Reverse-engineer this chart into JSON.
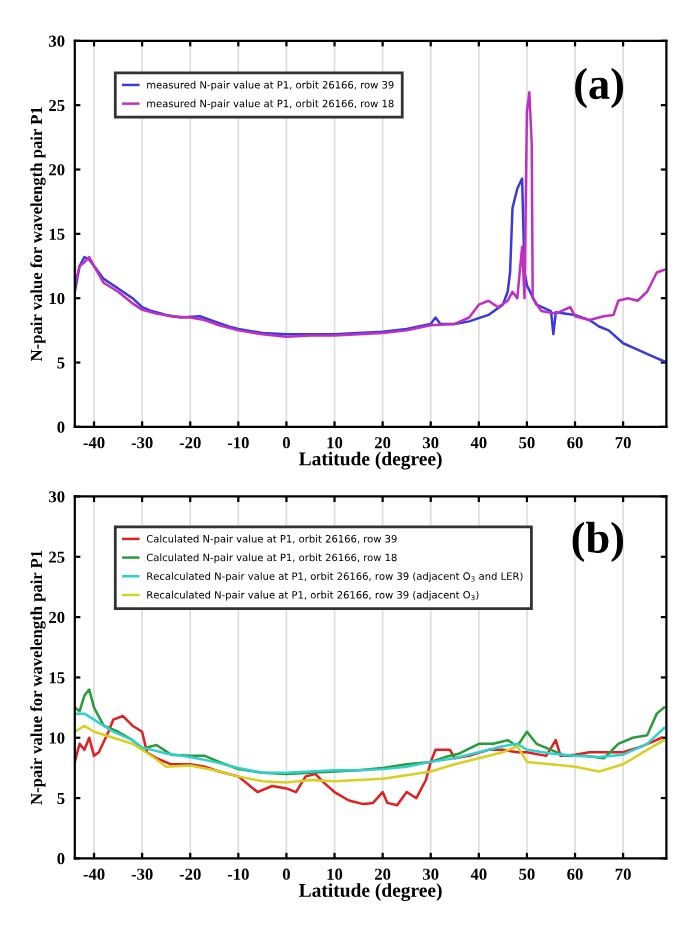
{
  "chart_data": [
    {
      "type": "line",
      "xlabel": "Latitude (degree)",
      "ylabel": "N-pair value for wavelength pair P1",
      "annotations": [
        "(a)"
      ],
      "xlim": [
        -44,
        79
      ],
      "ylim": [
        0,
        30
      ],
      "xticks": [
        -40,
        -30,
        -20,
        -10,
        0,
        10,
        20,
        30,
        40,
        50,
        60,
        70
      ],
      "yticks": [
        0,
        5,
        10,
        15,
        20,
        25,
        30
      ],
      "grid": "x",
      "legend": "top left",
      "marker": "none",
      "line_style": "solid",
      "series": [
        {
          "name": "measured N-pair value at P1, orbit 26166, row 39",
          "color": "#3a3adc",
          "x": [
            -44,
            -43,
            -42,
            -41,
            -40,
            -38,
            -36,
            -34,
            -32,
            -30,
            -28,
            -25,
            -22,
            -18,
            -15,
            -12,
            -10,
            -5,
            0,
            5,
            10,
            15,
            20,
            25,
            30,
            31,
            32,
            35,
            38,
            42,
            45,
            46,
            46.5,
            47,
            48,
            49,
            49.5,
            50,
            52,
            55,
            55.5,
            56,
            60,
            63,
            65,
            67,
            70,
            73,
            76,
            78.5
          ],
          "values": [
            10.5,
            12.5,
            13.2,
            13,
            12.5,
            11.5,
            11,
            10.5,
            10,
            9.3,
            9,
            8.7,
            8.5,
            8.6,
            8.2,
            7.8,
            7.6,
            7.3,
            7.2,
            7.2,
            7.2,
            7.3,
            7.4,
            7.6,
            8,
            8.5,
            8,
            8,
            8.2,
            8.7,
            9.5,
            10.5,
            12,
            17,
            18.5,
            19.3,
            12,
            11,
            9.5,
            9,
            7.2,
            8.9,
            8.7,
            8.3,
            7.8,
            7.5,
            6.5,
            6,
            5.5,
            5.1
          ]
        },
        {
          "name": "measured N-pair value at P1, orbit 26166, row 18",
          "color": "#c030c0",
          "x": [
            -44,
            -43,
            -42,
            -41,
            -40,
            -38,
            -35,
            -32,
            -30,
            -27,
            -24,
            -20,
            -17,
            -14,
            -10,
            -5,
            0,
            5,
            10,
            15,
            20,
            25,
            30,
            35,
            38,
            40,
            42,
            44,
            46,
            47,
            48,
            49,
            49.5,
            50,
            50.5,
            51,
            51.2,
            53,
            56,
            59,
            60,
            63,
            66,
            68,
            69,
            71,
            73,
            75,
            77,
            78.5
          ],
          "values": [
            11,
            12.5,
            12.8,
            13.2,
            12.5,
            11.2,
            10.5,
            9.6,
            9.1,
            8.8,
            8.6,
            8.5,
            8.3,
            7.9,
            7.5,
            7.2,
            7.0,
            7.1,
            7.1,
            7.2,
            7.3,
            7.5,
            7.9,
            8.0,
            8.5,
            9.5,
            9.8,
            9.3,
            9.8,
            10.5,
            10,
            14,
            10,
            24.5,
            26,
            22,
            10,
            9,
            8.8,
            9.3,
            8.6,
            8.3,
            8.6,
            8.7,
            9.8,
            10,
            9.8,
            10.5,
            12,
            12.2
          ]
        }
      ]
    },
    {
      "type": "line",
      "xlabel": "Latitude (degree)",
      "ylabel": "N-pair value for wavelength pair P1",
      "annotations": [
        "(b)"
      ],
      "xlim": [
        -44,
        79
      ],
      "ylim": [
        0,
        30
      ],
      "xticks": [
        -40,
        -30,
        -20,
        -10,
        0,
        10,
        20,
        30,
        40,
        50,
        60,
        70
      ],
      "yticks": [
        0,
        5,
        10,
        15,
        20,
        25,
        30
      ],
      "grid": "x",
      "legend": "top left",
      "marker": "none",
      "line_style": "solid",
      "series": [
        {
          "name": "Calculated N-pair value at P1, orbit 26166, row 39",
          "color": "#e02020",
          "x": [
            -44,
            -43,
            -42,
            -41,
            -40,
            -39,
            -37,
            -36,
            -34,
            -32,
            -30,
            -29,
            -27,
            -24,
            -20,
            -17,
            -14,
            -10,
            -6,
            -3,
            0,
            2,
            4,
            6,
            8,
            10,
            13,
            16,
            18,
            20,
            21,
            23,
            25,
            27,
            29,
            30,
            31,
            34,
            35,
            38,
            42,
            45,
            48,
            50,
            54,
            56,
            57,
            60,
            63,
            66,
            70,
            74,
            78
          ],
          "values": [
            8,
            9.5,
            9,
            10,
            8.5,
            8.8,
            10.5,
            11.5,
            11.8,
            11,
            10.5,
            8.8,
            8.3,
            7.8,
            7.8,
            7.6,
            7.2,
            6.8,
            5.5,
            6,
            5.8,
            5.5,
            6.8,
            7,
            6.2,
            5.5,
            4.8,
            4.5,
            4.6,
            5.5,
            4.6,
            4.4,
            5.5,
            5.0,
            6.5,
            8.0,
            9,
            9,
            8.3,
            8.5,
            9,
            9,
            8.8,
            8.8,
            8.5,
            9.8,
            8.5,
            8.6,
            8.8,
            8.8,
            8.8,
            9.3,
            10
          ]
        },
        {
          "name": "Calculated N-pair value at P1, orbit 26166, row 18",
          "color": "#2a9a3a",
          "x": [
            -44,
            -43,
            -42,
            -41,
            -40,
            -38,
            -35,
            -32,
            -30,
            -27,
            -24,
            -20,
            -17,
            -14,
            -10,
            -5,
            0,
            5,
            10,
            15,
            20,
            25,
            30,
            33,
            36,
            40,
            43,
            46,
            48,
            50,
            52,
            55,
            58,
            62,
            66,
            69,
            72,
            75,
            77,
            78.5
          ],
          "values": [
            12.5,
            12.2,
            13.5,
            14,
            12.5,
            11,
            10.5,
            9.8,
            9.1,
            9.4,
            8.6,
            8.5,
            8.5,
            8,
            7.4,
            7.1,
            7.0,
            7.1,
            7.2,
            7.3,
            7.5,
            7.8,
            8,
            8.4,
            8.7,
            9.5,
            9.5,
            9.8,
            9.3,
            10.5,
            9.5,
            9,
            8.5,
            8.5,
            8.3,
            9.5,
            10,
            10.2,
            12,
            12.5
          ]
        },
        {
          "name": "Recalculated N-pair value at P1, orbit 26166, row 39 (adjacent O$_{3}$ and LER)",
          "color": "#30d0d0",
          "x": [
            -44,
            -42,
            -40,
            -36,
            -32,
            -30,
            -25,
            -20,
            -15,
            -10,
            -5,
            0,
            5,
            10,
            15,
            20,
            25,
            30,
            35,
            40,
            45,
            48,
            50,
            55,
            60,
            65,
            70,
            75,
            78.5
          ],
          "values": [
            12,
            12,
            11.5,
            10.5,
            9.8,
            9.2,
            8.7,
            8.4,
            8,
            7.5,
            7.1,
            7.1,
            7.2,
            7.3,
            7.3,
            7.4,
            7.6,
            8,
            8.3,
            8.8,
            9.3,
            9.5,
            9,
            8.7,
            8.5,
            8.4,
            8.6,
            9.5,
            10.8
          ]
        },
        {
          "name": "Recalculated N-pair value at P1, orbit 26166, row 39 (adjacent O$_{3}$)",
          "color": "#d8d020",
          "x": [
            -44,
            -42,
            -40,
            -36,
            -32,
            -30,
            -27,
            -25,
            -20,
            -15,
            -10,
            -5,
            0,
            5,
            10,
            15,
            20,
            25,
            30,
            35,
            40,
            45,
            48,
            50,
            55,
            60,
            65,
            70,
            75,
            78.5
          ],
          "values": [
            10.5,
            11,
            10.5,
            10,
            9.5,
            9,
            8.2,
            7.6,
            7.7,
            7.3,
            6.8,
            6.4,
            6.3,
            6.5,
            6.4,
            6.5,
            6.6,
            6.9,
            7.2,
            7.8,
            8.3,
            8.8,
            9.3,
            8,
            7.8,
            7.6,
            7.2,
            7.8,
            9,
            9.8
          ]
        }
      ]
    }
  ]
}
